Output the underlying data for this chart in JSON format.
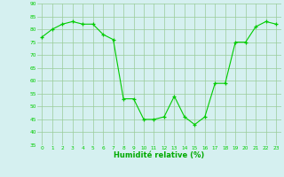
{
  "x": [
    0,
    1,
    2,
    3,
    4,
    5,
    6,
    7,
    8,
    9,
    10,
    11,
    12,
    13,
    14,
    15,
    16,
    17,
    18,
    19,
    20,
    21,
    22,
    23
  ],
  "y": [
    77,
    80,
    82,
    83,
    82,
    82,
    78,
    76,
    53,
    53,
    45,
    45,
    46,
    54,
    46,
    43,
    46,
    59,
    59,
    75,
    75,
    81,
    83,
    82
  ],
  "line_color": "#00cc00",
  "marker_color": "#00cc00",
  "bg_color": "#d5f0f0",
  "grid_color": "#99cc99",
  "xlabel": "Humidité relative (%)",
  "xlabel_color": "#00aa00",
  "tick_color": "#00cc00",
  "ylim": [
    35,
    90
  ],
  "xlim": [
    -0.5,
    23.5
  ],
  "yticks": [
    35,
    40,
    45,
    50,
    55,
    60,
    65,
    70,
    75,
    80,
    85,
    90
  ],
  "xticks": [
    0,
    1,
    2,
    3,
    4,
    5,
    6,
    7,
    8,
    9,
    10,
    11,
    12,
    13,
    14,
    15,
    16,
    17,
    18,
    19,
    20,
    21,
    22,
    23
  ]
}
